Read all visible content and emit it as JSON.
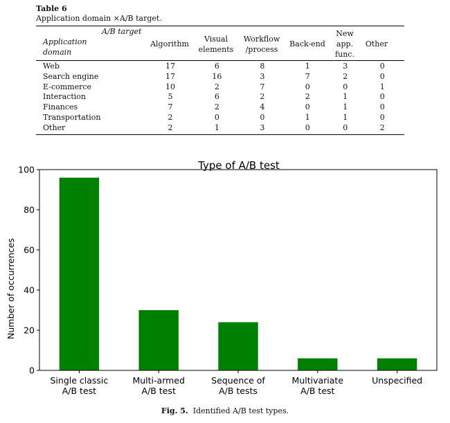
{
  "table": {
    "label": "Table 6",
    "caption": "Application domain ×A/B target.",
    "header": {
      "corner_top": "A/B target",
      "corner_bottom_1": "Application",
      "corner_bottom_2": "domain",
      "columns": [
        [
          "Algorithm"
        ],
        [
          "Visual",
          "elements"
        ],
        [
          "Workflow",
          "/process"
        ],
        [
          "Back-end"
        ],
        [
          "New",
          "app.",
          "func."
        ],
        [
          "Other"
        ]
      ]
    },
    "rows": [
      {
        "domain": "Web",
        "values": [
          "17",
          "6",
          "8",
          "1",
          "3",
          "0"
        ]
      },
      {
        "domain": "Search engine",
        "values": [
          "17",
          "16",
          "3",
          "7",
          "2",
          "0"
        ]
      },
      {
        "domain": "E-commerce",
        "values": [
          "10",
          "2",
          "7",
          "0",
          "0",
          "1"
        ]
      },
      {
        "domain": "Interaction",
        "values": [
          "5",
          "6",
          "2",
          "2",
          "1",
          "0"
        ]
      },
      {
        "domain": "Finances",
        "values": [
          "7",
          "2",
          "4",
          "0",
          "1",
          "0"
        ]
      },
      {
        "domain": "Transportation",
        "values": [
          "2",
          "0",
          "0",
          "1",
          "1",
          "0"
        ]
      },
      {
        "domain": "Other",
        "values": [
          "2",
          "1",
          "3",
          "0",
          "0",
          "2"
        ]
      }
    ]
  },
  "chart_data": {
    "type": "bar",
    "title": "Type of A/B test",
    "xlabel": "",
    "ylabel": "Number of occurrences",
    "categories": [
      [
        "Single classic",
        "A/B test"
      ],
      [
        "Multi-armed",
        "A/B test"
      ],
      [
        "Sequence of",
        "A/B tests"
      ],
      [
        "Multivariate",
        "A/B test"
      ],
      [
        "Unspecified"
      ]
    ],
    "values": [
      96,
      30,
      24,
      6,
      6
    ],
    "ylim": [
      0,
      100
    ],
    "yticks": [
      0,
      20,
      40,
      60,
      80,
      100
    ],
    "bar_color": "#008000",
    "grid": false
  },
  "figure_caption": {
    "label": "Fig. 5.",
    "text": "Identified A/B test types."
  }
}
